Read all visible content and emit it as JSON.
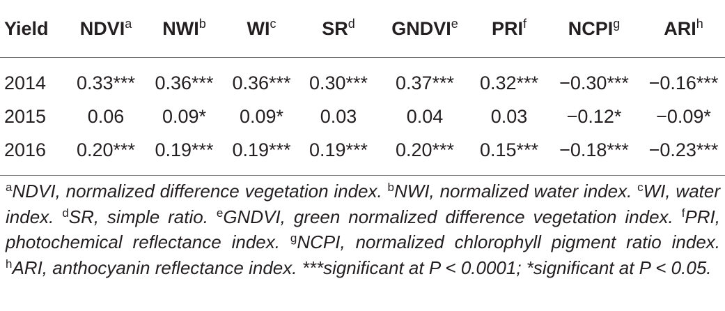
{
  "table": {
    "header": [
      {
        "label": "Yield",
        "sup": ""
      },
      {
        "label": "NDVI",
        "sup": "a"
      },
      {
        "label": "NWI",
        "sup": "b"
      },
      {
        "label": "WI",
        "sup": "c"
      },
      {
        "label": "SR",
        "sup": "d"
      },
      {
        "label": "GNDVI",
        "sup": "e"
      },
      {
        "label": "PRI",
        "sup": "f"
      },
      {
        "label": "NCPI",
        "sup": "g"
      },
      {
        "label": "ARI",
        "sup": "h"
      }
    ],
    "rows": [
      [
        "2014",
        "0.33***",
        "0.36***",
        "0.36***",
        "0.30***",
        "0.37***",
        "0.32***",
        "−0.30***",
        "−0.16***"
      ],
      [
        "2015",
        "0.06",
        "0.09*",
        "0.09*",
        "0.03",
        "0.04",
        "0.03",
        "−0.12*",
        "−0.09*"
      ],
      [
        "2016",
        "0.20***",
        "0.19***",
        "0.19***",
        "0.19***",
        "0.20***",
        "0.15***",
        "−0.18***",
        "−0.23***"
      ]
    ]
  },
  "footnotes": [
    {
      "sup": "a",
      "text": "NDVI, normalized difference vegetation index. "
    },
    {
      "sup": "b",
      "text": "NWI, normalized water index. "
    },
    {
      "sup": "c",
      "text": "WI, water index. "
    },
    {
      "sup": "d",
      "text": "SR, simple ratio. "
    },
    {
      "sup": "e",
      "text": "GNDVI, green normalized difference vegetation index. "
    },
    {
      "sup": "f",
      "text": "PRI, photochemical reflectance index. "
    },
    {
      "sup": "g",
      "text": "NCPI, normalized chlorophyll pigment ratio index. "
    },
    {
      "sup": "h",
      "text": "ARI, anthocyanin reflectance index. "
    },
    {
      "sup": "",
      "text": "***significant at P < 0.0001; *significant at P < 0.05."
    }
  ]
}
